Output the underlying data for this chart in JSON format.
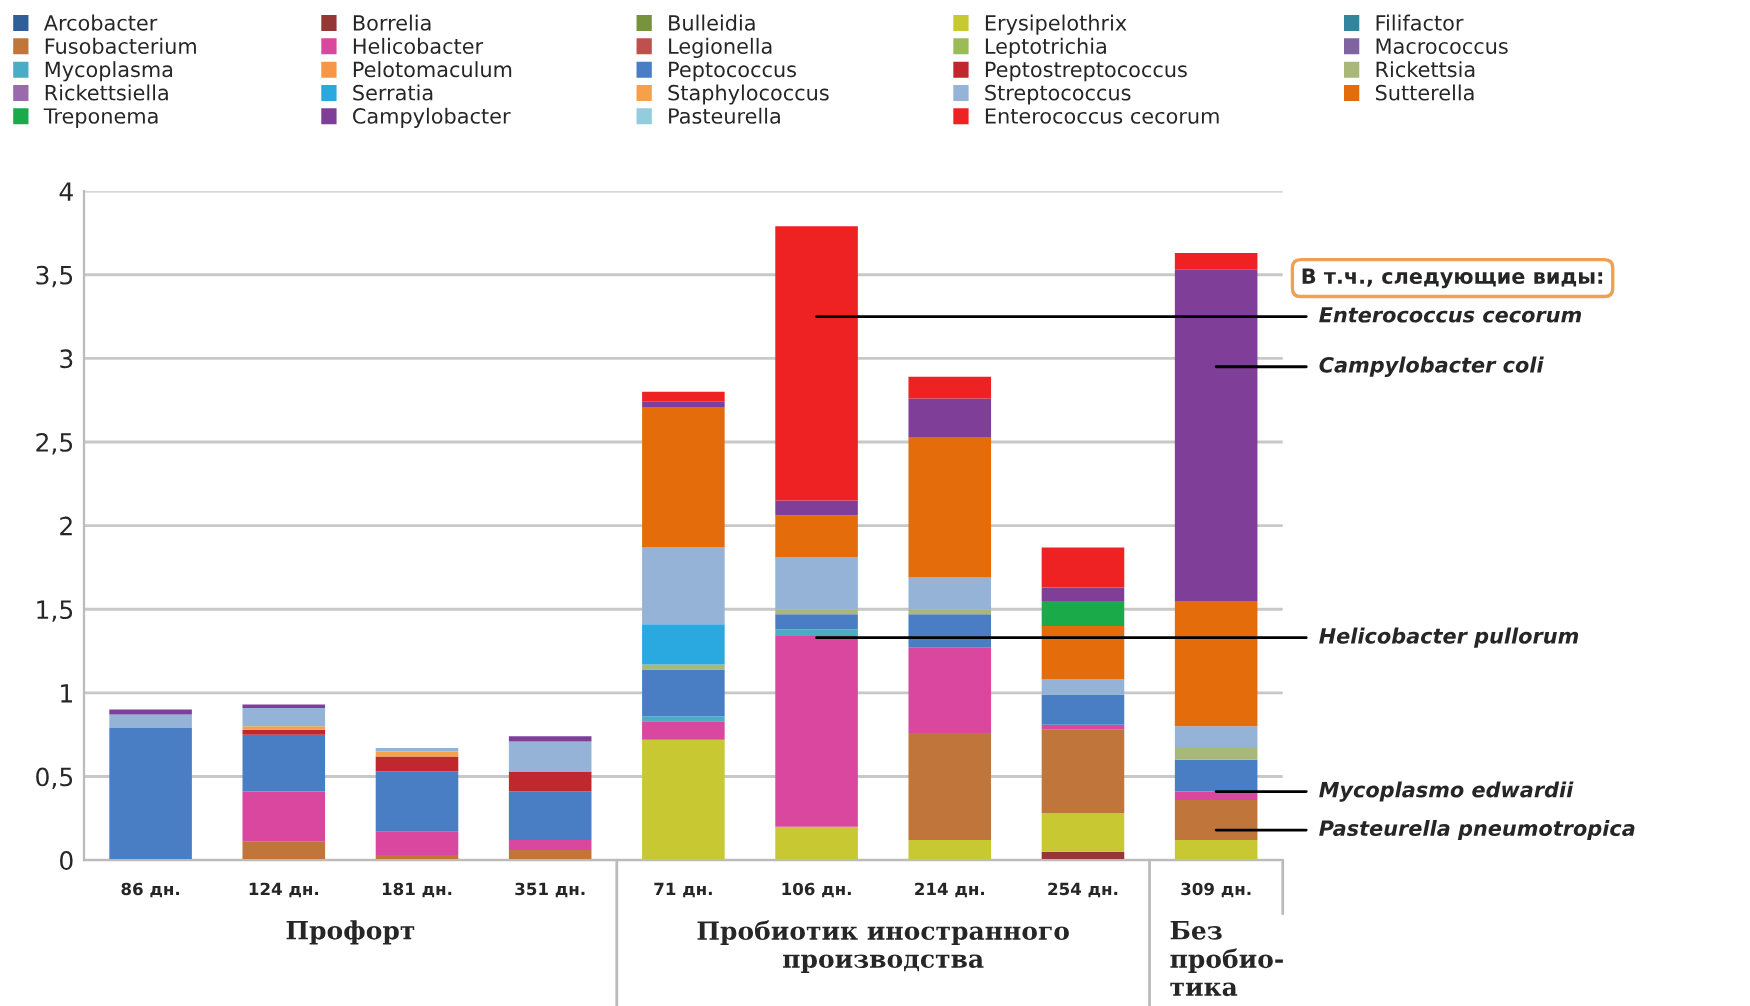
{
  "chart_data": {
    "type": "bar",
    "stacked": true,
    "categories": [
      "86 дн.",
      "124 дн.",
      "181 дн.",
      "351 дн.",
      "71 дн.",
      "106 дн.",
      "214 дн.",
      "254 дн.",
      "309 дн."
    ],
    "series": [
      {
        "name": "Arcobacter",
        "color": "#2f5f98",
        "values": [
          null,
          null,
          null,
          null,
          null,
          null,
          null,
          null,
          null
        ]
      },
      {
        "name": "Borrelia",
        "color": "#953735",
        "values": [
          null,
          null,
          null,
          null,
          null,
          null,
          null,
          0.05,
          null
        ]
      },
      {
        "name": "Bulleidia",
        "color": "#77933c",
        "values": [
          null,
          null,
          null,
          null,
          null,
          null,
          null,
          null,
          null
        ]
      },
      {
        "name": "Erysipelothrix",
        "color": "#c8c832",
        "values": [
          null,
          null,
          null,
          null,
          0.72,
          0.2,
          0.12,
          0.23,
          0.12
        ]
      },
      {
        "name": "Filifactor",
        "color": "#31859c",
        "values": [
          null,
          null,
          null,
          null,
          null,
          null,
          null,
          null,
          null
        ]
      },
      {
        "name": "Fusobacterium",
        "color": "#c0763b",
        "values": [
          null,
          0.11,
          0.03,
          0.06,
          null,
          null,
          0.64,
          0.5,
          0.24
        ]
      },
      {
        "name": "Helicobacter",
        "color": "#d9479e",
        "values": [
          null,
          0.3,
          0.14,
          0.06,
          0.11,
          1.14,
          0.51,
          0.03,
          0.05
        ]
      },
      {
        "name": "Legionella",
        "color": "#c0504d",
        "values": [
          null,
          null,
          null,
          null,
          null,
          null,
          null,
          null,
          null
        ]
      },
      {
        "name": "Leptotrichia",
        "color": "#9bbb59",
        "values": [
          null,
          null,
          null,
          null,
          null,
          null,
          null,
          null,
          null
        ]
      },
      {
        "name": "Macrococcus",
        "color": "#8064a2",
        "values": [
          null,
          null,
          null,
          null,
          null,
          null,
          null,
          null,
          null
        ]
      },
      {
        "name": "Mycoplasma",
        "color": "#4bacc6",
        "values": [
          null,
          null,
          null,
          null,
          0.03,
          0.04,
          null,
          null,
          null
        ]
      },
      {
        "name": "Pelotomaculum",
        "color": "#f79646",
        "values": [
          null,
          null,
          null,
          null,
          null,
          null,
          null,
          null,
          null
        ]
      },
      {
        "name": "Peptococcus",
        "color": "#4a7ec4",
        "values": [
          0.79,
          0.34,
          0.36,
          0.29,
          0.28,
          0.09,
          0.2,
          0.18,
          0.19
        ]
      },
      {
        "name": "Peptostreptococcus",
        "color": "#c0282d",
        "values": [
          null,
          0.03,
          0.09,
          0.12,
          null,
          null,
          null,
          null,
          null
        ]
      },
      {
        "name": "Rickettsia",
        "color": "#a8b878",
        "values": [
          null,
          null,
          null,
          null,
          0.03,
          0.03,
          0.03,
          null,
          0.07
        ]
      },
      {
        "name": "Rickettsiella",
        "color": "#9b6aab",
        "values": [
          null,
          null,
          null,
          null,
          null,
          null,
          null,
          null,
          null
        ]
      },
      {
        "name": "Serratia",
        "color": "#2aa8e0",
        "values": [
          null,
          null,
          null,
          null,
          0.24,
          null,
          null,
          null,
          null
        ]
      },
      {
        "name": "Staphylococcus",
        "color": "#f7a04a",
        "values": [
          null,
          0.02,
          0.03,
          null,
          null,
          null,
          null,
          null,
          null
        ]
      },
      {
        "name": "Streptococcus",
        "color": "#95b3d7",
        "values": [
          0.08,
          0.11,
          0.02,
          0.18,
          0.46,
          0.31,
          0.19,
          0.09,
          0.13
        ]
      },
      {
        "name": "Sutterella",
        "color": "#e46c0a",
        "values": [
          null,
          null,
          null,
          null,
          0.84,
          0.25,
          0.84,
          0.32,
          0.75
        ]
      },
      {
        "name": "Treponema",
        "color": "#1aaa4a",
        "values": [
          null,
          null,
          null,
          null,
          null,
          null,
          null,
          0.15,
          null
        ]
      },
      {
        "name": "Campylobacter",
        "color": "#7f3f98",
        "values": [
          0.03,
          0.02,
          null,
          0.03,
          0.03,
          0.09,
          0.23,
          0.08,
          1.98
        ]
      },
      {
        "name": "Pasteurella",
        "color": "#93cddd",
        "values": [
          null,
          null,
          null,
          null,
          null,
          null,
          null,
          null,
          null
        ]
      },
      {
        "name": "Enterococcus cecorum",
        "color": "#ee2222",
        "values": [
          null,
          null,
          null,
          null,
          0.06,
          1.64,
          0.13,
          0.24,
          0.1
        ]
      }
    ],
    "ylim": [
      0,
      4
    ],
    "yticks": [
      0,
      {
        "value": 0.5,
        "label": "0,5"
      },
      1,
      {
        "value": 1.5,
        "label": "1,5"
      },
      2,
      {
        "value": 2.5,
        "label": "2,5"
      },
      3,
      {
        "value": 3.5,
        "label": "3,5"
      },
      4
    ],
    "grid": "y",
    "legend": "top",
    "annotations": [
      "В т.ч., следующие виды:",
      "Enterococcus cecorum",
      "Campylobacter coli",
      "Helicobacter pullorum",
      {
        "text": "Mycoplasmo edwardii",
        "x": "309 дн.",
        "y": 0.41
      },
      "Pasteurella pneumotropica",
      "Профорт",
      "Пробиотик иностранного\nпроизводства",
      "Без\nпробио-\nтика"
    ]
  }
}
